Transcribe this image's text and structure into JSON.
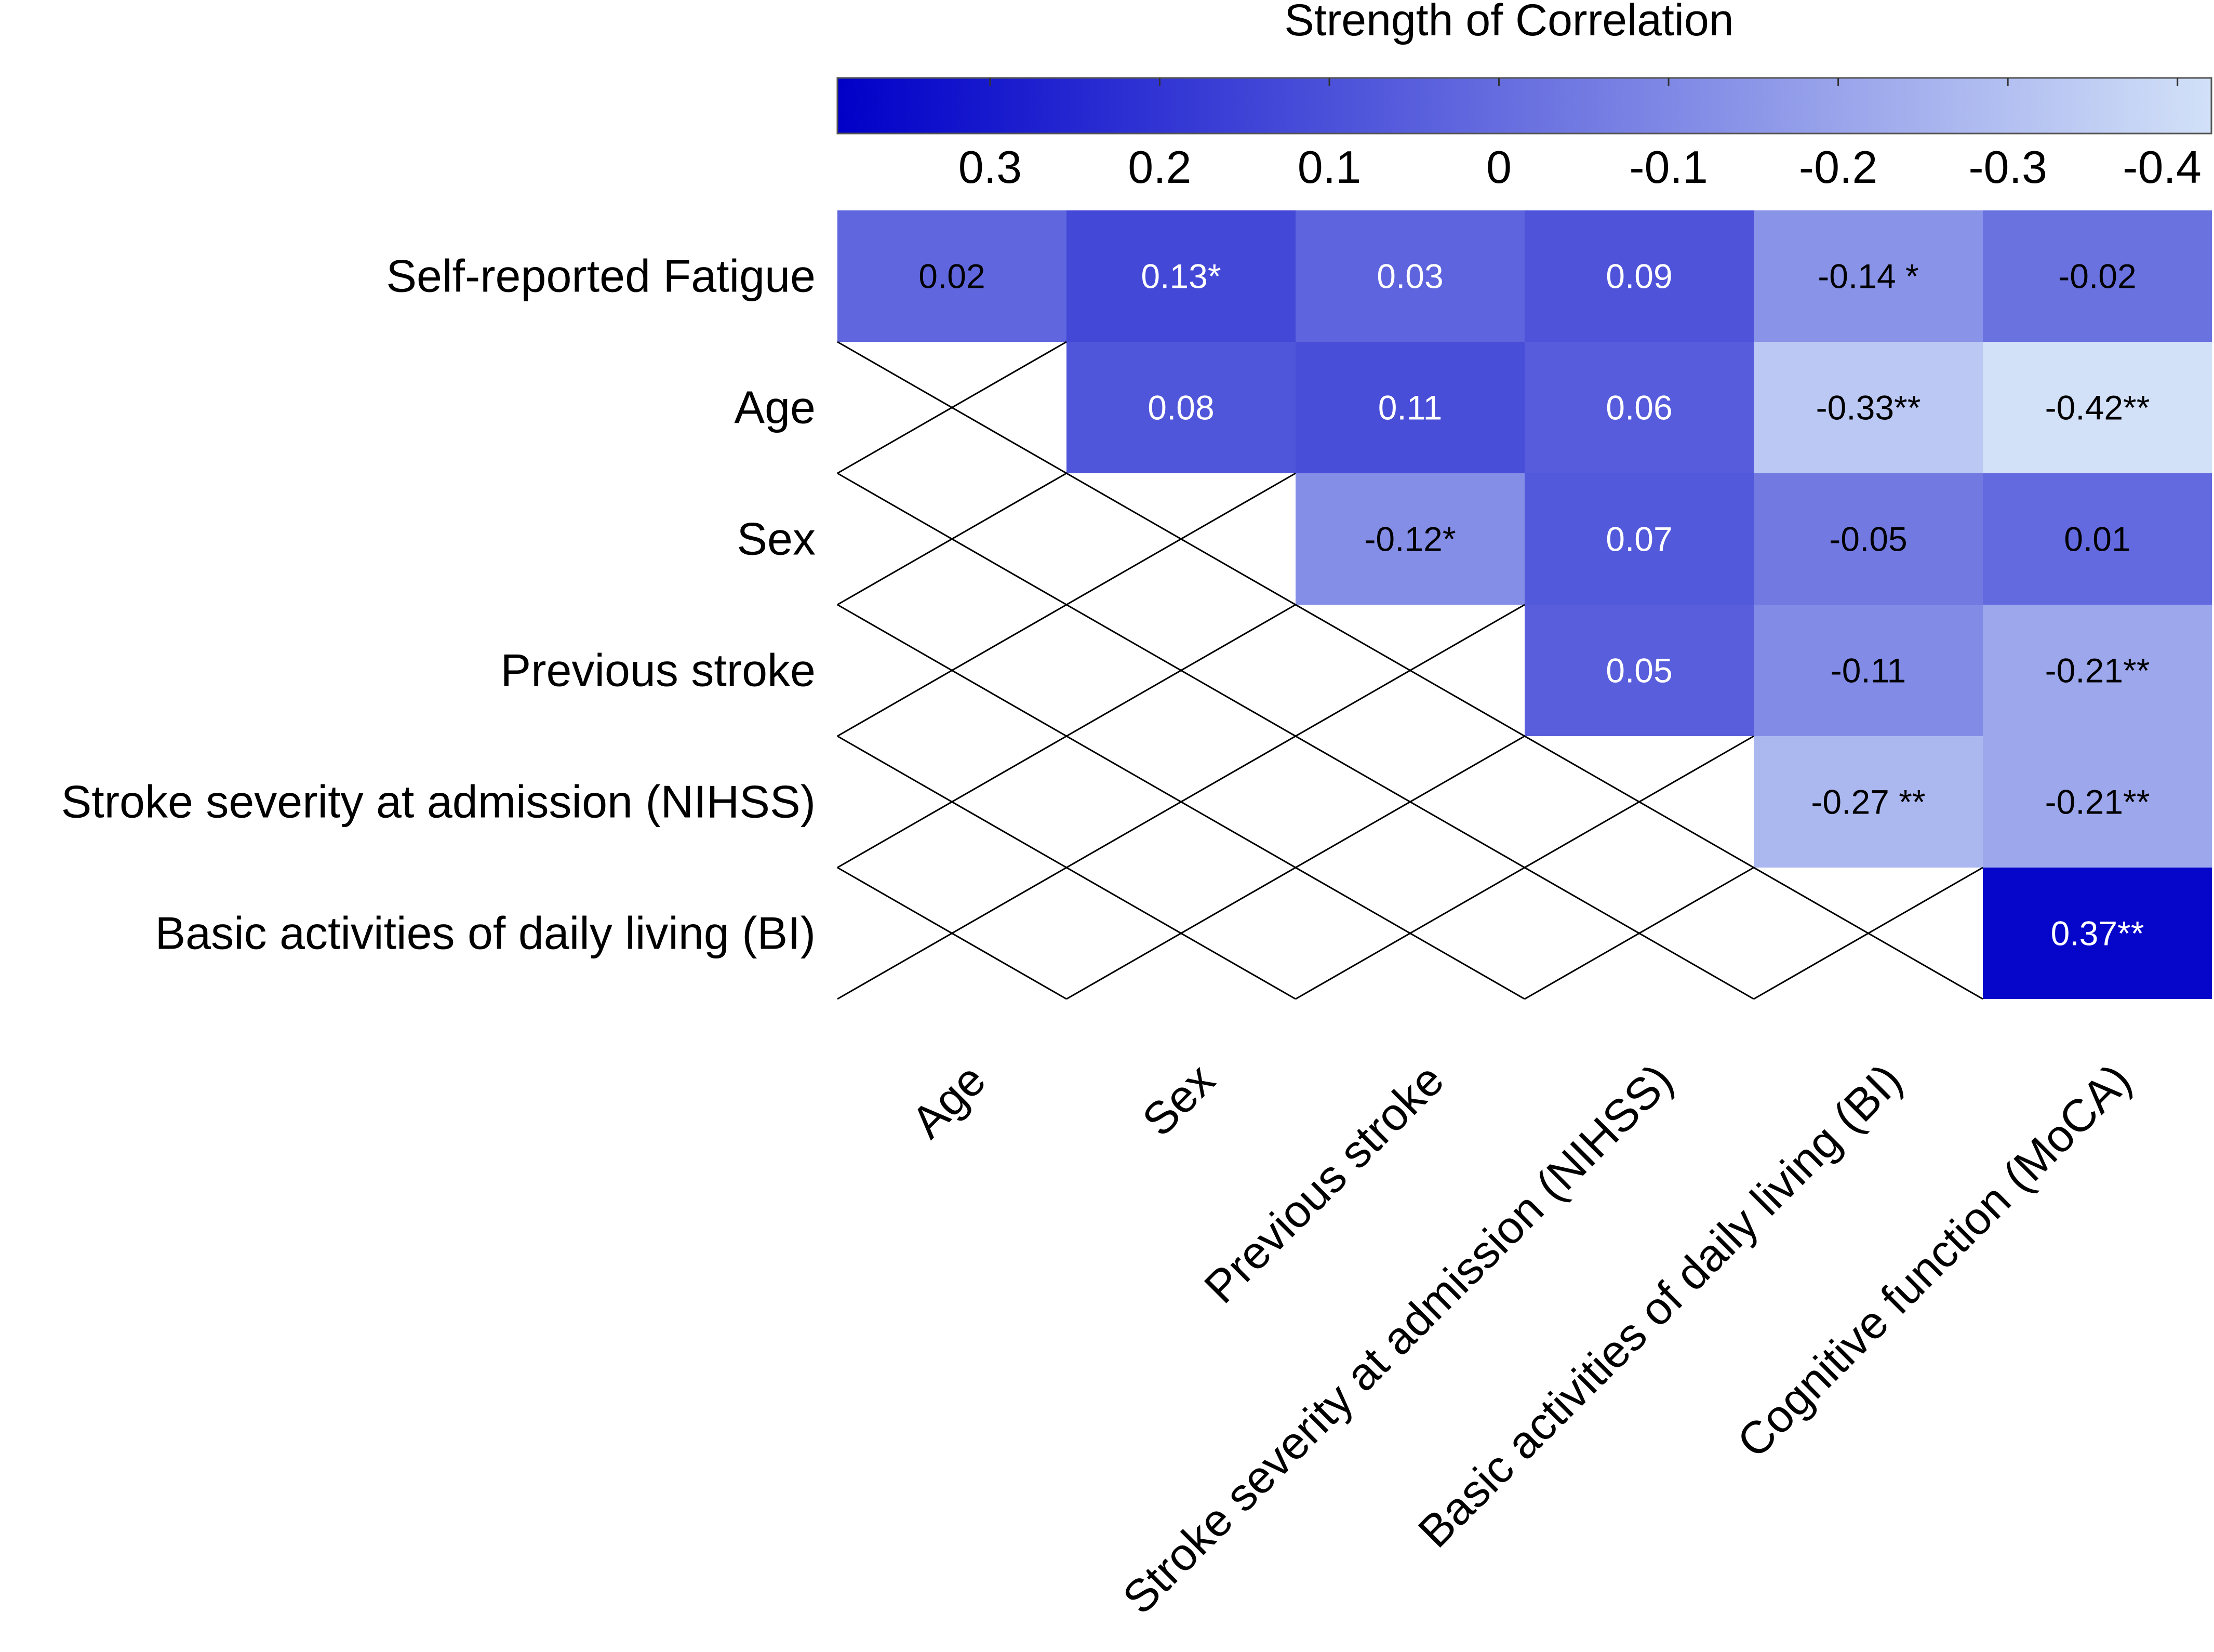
{
  "chart_data": {
    "type": "heatmap",
    "title": "Strength of Correlation",
    "colorbar": {
      "title": "Strength of Correlation",
      "range": [
        0.39,
        -0.42
      ],
      "ticks": [
        {
          "value": 0.3,
          "label": "0.3"
        },
        {
          "value": 0.2,
          "label": "0.2"
        },
        {
          "value": 0.1,
          "label": "0.1"
        },
        {
          "value": 0,
          "label": "0"
        },
        {
          "value": -0.1,
          "label": "-0.1"
        },
        {
          "value": -0.2,
          "label": "-0.2"
        },
        {
          "value": -0.3,
          "label": "-0.3"
        },
        {
          "value": -0.4,
          "label": "-0.4"
        }
      ],
      "color_high": "#0000c8",
      "color_low": "#d2e1f8"
    },
    "rows": [
      "Self-reported Fatigue",
      "Age",
      "Sex",
      "Previous stroke",
      "Stroke severity at admission (NIHSS)",
      "Basic activities of daily living (BI)"
    ],
    "columns": [
      "Age",
      "Sex",
      "Previous stroke",
      "Stroke severity at admission (NIHSS)",
      "Basic activities of daily living (BI)",
      "Cognitive function (MoCA)"
    ],
    "cells": [
      {
        "row": 0,
        "col": 0,
        "value": 0.02,
        "label": "0.02"
      },
      {
        "row": 0,
        "col": 1,
        "value": 0.13,
        "label": "0.13*"
      },
      {
        "row": 0,
        "col": 2,
        "value": 0.03,
        "label": "0.03"
      },
      {
        "row": 0,
        "col": 3,
        "value": 0.09,
        "label": "0.09"
      },
      {
        "row": 0,
        "col": 4,
        "value": -0.14,
        "label": "-0.14 *"
      },
      {
        "row": 0,
        "col": 5,
        "value": -0.02,
        "label": "-0.02"
      },
      {
        "row": 1,
        "col": 1,
        "value": 0.08,
        "label": "0.08"
      },
      {
        "row": 1,
        "col": 2,
        "value": 0.11,
        "label": "0.11"
      },
      {
        "row": 1,
        "col": 3,
        "value": 0.06,
        "label": "0.06"
      },
      {
        "row": 1,
        "col": 4,
        "value": -0.33,
        "label": "-0.33**"
      },
      {
        "row": 1,
        "col": 5,
        "value": -0.42,
        "label": "-0.42**"
      },
      {
        "row": 2,
        "col": 2,
        "value": -0.12,
        "label": "-0.12*"
      },
      {
        "row": 2,
        "col": 3,
        "value": 0.07,
        "label": "0.07"
      },
      {
        "row": 2,
        "col": 4,
        "value": -0.05,
        "label": "-0.05"
      },
      {
        "row": 2,
        "col": 5,
        "value": 0.01,
        "label": "0.01"
      },
      {
        "row": 3,
        "col": 3,
        "value": 0.05,
        "label": "0.05"
      },
      {
        "row": 3,
        "col": 4,
        "value": -0.11,
        "label": "-0.11"
      },
      {
        "row": 3,
        "col": 5,
        "value": -0.21,
        "label": "-0.21**"
      },
      {
        "row": 4,
        "col": 4,
        "value": -0.27,
        "label": "-0.27 **"
      },
      {
        "row": 4,
        "col": 5,
        "value": -0.21,
        "label": "-0.21**"
      },
      {
        "row": 5,
        "col": 5,
        "value": 0.37,
        "label": "0.37**"
      }
    ]
  }
}
